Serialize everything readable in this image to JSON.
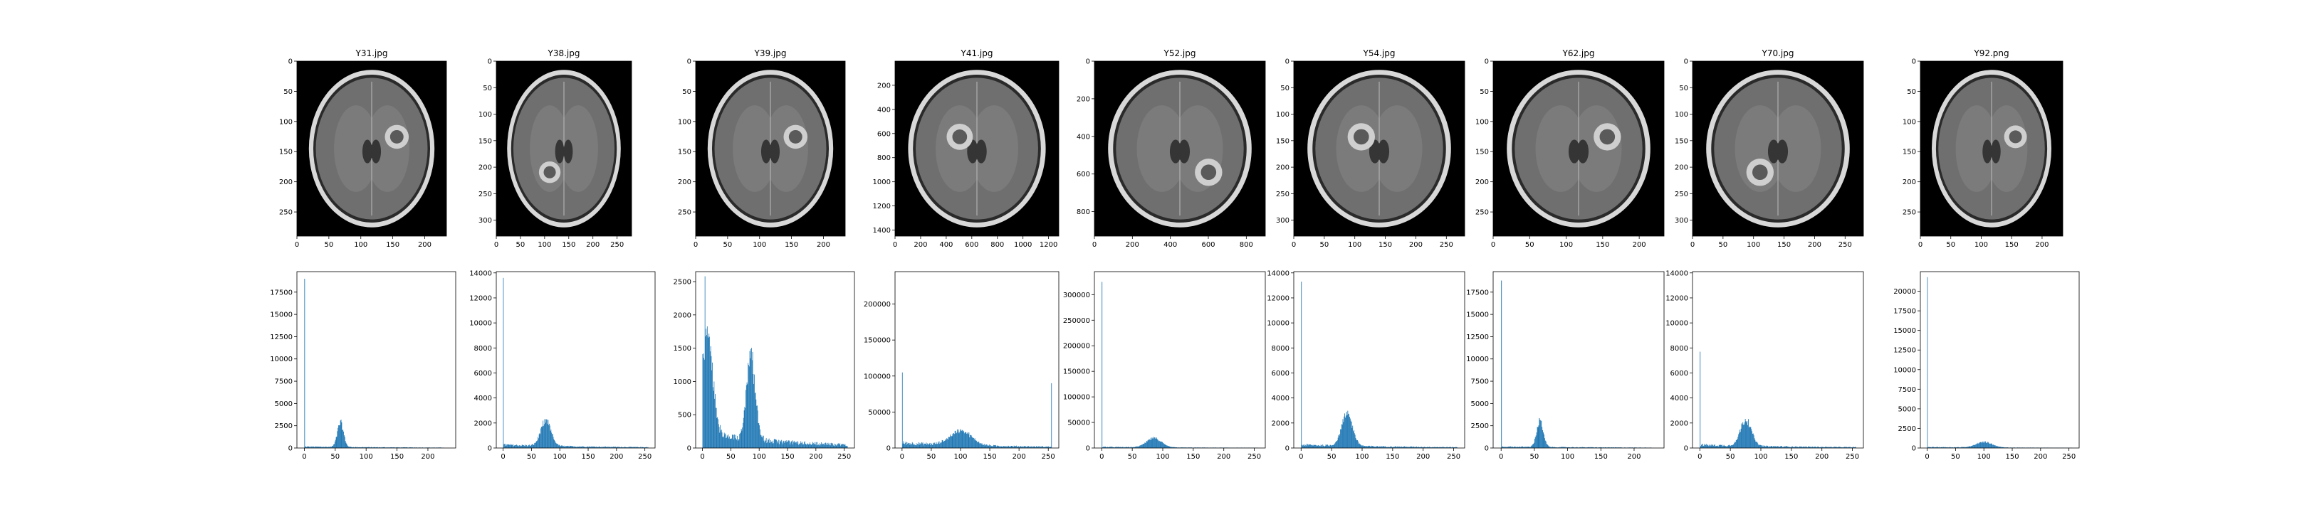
{
  "colors": {
    "bar": "#1f77b4",
    "axis": "#000000",
    "background": "#ffffff",
    "scan_background": "#000000"
  },
  "chart_data": [
    {
      "type": "image",
      "panel": 1,
      "title": "Y31.jpg",
      "content": "axial brain MRI scan (grayscale)",
      "x_ticks": [
        0,
        50,
        100,
        150,
        200
      ],
      "y_ticks": [
        0,
        50,
        100,
        150,
        200,
        250
      ],
      "xlim": [
        0,
        234
      ],
      "ylim": [
        0,
        290
      ]
    },
    {
      "type": "image",
      "panel": 2,
      "title": "Y38.jpg",
      "content": "axial brain MRI scan (grayscale)",
      "x_ticks": [
        0,
        50,
        100,
        150,
        200,
        250
      ],
      "y_ticks": [
        0,
        50,
        100,
        150,
        200,
        250,
        300
      ],
      "xlim": [
        0,
        280
      ],
      "ylim": [
        0,
        330
      ]
    },
    {
      "type": "image",
      "panel": 3,
      "title": "Y39.jpg",
      "content": "axial brain MRI scan (grayscale)",
      "x_ticks": [
        0,
        50,
        100,
        150,
        200
      ],
      "y_ticks": [
        0,
        50,
        100,
        150,
        200,
        250
      ],
      "xlim": [
        0,
        234
      ],
      "ylim": [
        0,
        290
      ]
    },
    {
      "type": "image",
      "panel": 4,
      "title": "Y41.jpg",
      "content": "axial brain MRI scan (grayscale)",
      "x_ticks": [
        0,
        200,
        400,
        600,
        800,
        1000,
        1200
      ],
      "y_ticks": [
        200,
        400,
        600,
        800,
        1000,
        1200,
        1400
      ],
      "xlim": [
        0,
        1280
      ],
      "ylim": [
        0,
        1450
      ]
    },
    {
      "type": "image",
      "panel": 5,
      "title": "Y52.jpg",
      "content": "axial brain MRI scan (grayscale)",
      "x_ticks": [
        0,
        200,
        400,
        600,
        800
      ],
      "y_ticks": [
        0,
        200,
        400,
        600,
        800
      ],
      "xlim": [
        0,
        900
      ],
      "ylim": [
        0,
        930
      ]
    },
    {
      "type": "image",
      "panel": 6,
      "title": "Y54.jpg",
      "content": "axial brain MRI scan (grayscale)",
      "x_ticks": [
        0,
        50,
        100,
        150,
        200,
        250
      ],
      "y_ticks": [
        0,
        50,
        100,
        150,
        200,
        250,
        300
      ],
      "xlim": [
        0,
        280
      ],
      "ylim": [
        0,
        330
      ]
    },
    {
      "type": "image",
      "panel": 7,
      "title": "Y62.jpg",
      "content": "axial brain MRI scan (grayscale)",
      "x_ticks": [
        0,
        50,
        100,
        150,
        200
      ],
      "y_ticks": [
        0,
        50,
        100,
        150,
        200,
        250
      ],
      "xlim": [
        0,
        234
      ],
      "ylim": [
        0,
        290
      ]
    },
    {
      "type": "image",
      "panel": 8,
      "title": "Y70.jpg",
      "content": "axial brain MRI scan (grayscale)",
      "x_ticks": [
        0,
        50,
        100,
        150,
        200,
        250
      ],
      "y_ticks": [
        0,
        50,
        100,
        150,
        200,
        250,
        300
      ],
      "xlim": [
        0,
        280
      ],
      "ylim": [
        0,
        330
      ]
    },
    {
      "type": "image",
      "panel": 9,
      "title": "Y92.png",
      "content": "axial brain MRI scan (grayscale)",
      "x_ticks": [
        0,
        50,
        100,
        150,
        200
      ],
      "y_ticks": [
        0,
        50,
        100,
        150,
        200,
        250
      ],
      "xlim": [
        0,
        234
      ],
      "ylim": [
        0,
        290
      ]
    },
    {
      "type": "bar",
      "panel": 10,
      "subtype": "histogram",
      "xlim": [
        -12,
        245
      ],
      "ylim": [
        0,
        19800
      ],
      "x_ticks": [
        0,
        50,
        100,
        150,
        200
      ],
      "y_ticks": [
        0,
        2500,
        5000,
        7500,
        10000,
        12500,
        15000,
        17500
      ],
      "spike": [
        0,
        19000
      ],
      "peaks": [
        [
          58,
          2700,
          5
        ]
      ],
      "baseline": 150
    },
    {
      "type": "bar",
      "panel": 11,
      "subtype": "histogram",
      "xlim": [
        -12,
        268
      ],
      "ylim": [
        0,
        14100
      ],
      "x_ticks": [
        0,
        50,
        100,
        150,
        200,
        250
      ],
      "y_ticks": [
        0,
        2000,
        4000,
        6000,
        8000,
        10000,
        12000,
        14000
      ],
      "spike": [
        0,
        13600
      ],
      "peaks": [
        [
          75,
          2000,
          9
        ]
      ],
      "baseline": 250
    },
    {
      "type": "bar",
      "panel": 12,
      "subtype": "histogram",
      "xlim": [
        -12,
        268
      ],
      "ylim": [
        0,
        2650
      ],
      "x_ticks": [
        0,
        50,
        100,
        150,
        200,
        250
      ],
      "y_ticks": [
        0,
        500,
        1000,
        1500,
        2000,
        2500
      ],
      "spike": [
        4,
        2580
      ],
      "peaks": [
        [
          8,
          1500,
          10
        ],
        [
          85,
          1250,
          8
        ]
      ],
      "baseline": 200
    },
    {
      "type": "bar",
      "panel": 13,
      "subtype": "histogram",
      "xlim": [
        -12,
        268
      ],
      "ylim": [
        0,
        245000
      ],
      "x_ticks": [
        0,
        50,
        100,
        150,
        200,
        250
      ],
      "y_ticks": [
        0,
        50000,
        100000,
        150000,
        200000
      ],
      "spike": [
        0,
        105000
      ],
      "peaks": [
        [
          100,
          20000,
          18
        ]
      ],
      "baseline": 7000,
      "end_spike": [
        255,
        90000
      ]
    },
    {
      "type": "bar",
      "panel": 14,
      "subtype": "histogram",
      "xlim": [
        -12,
        268
      ],
      "ylim": [
        0,
        345000
      ],
      "x_ticks": [
        0,
        50,
        100,
        150,
        200,
        250
      ],
      "y_ticks": [
        0,
        50000,
        100000,
        150000,
        200000,
        250000,
        300000
      ],
      "spike": [
        0,
        325000
      ],
      "peaks": [
        [
          85,
          18000,
          12
        ]
      ],
      "baseline": 2000
    },
    {
      "type": "bar",
      "panel": 15,
      "subtype": "histogram",
      "xlim": [
        -12,
        268
      ],
      "ylim": [
        0,
        14100
      ],
      "x_ticks": [
        0,
        50,
        100,
        150,
        200,
        250
      ],
      "y_ticks": [
        0,
        2000,
        4000,
        6000,
        8000,
        10000,
        12000,
        14000
      ],
      "spike": [
        0,
        13300
      ],
      "peaks": [
        [
          75,
          2500,
          9
        ]
      ],
      "baseline": 250
    },
    {
      "type": "bar",
      "panel": 16,
      "subtype": "histogram",
      "xlim": [
        -12,
        245
      ],
      "ylim": [
        0,
        19800
      ],
      "x_ticks": [
        0,
        50,
        100,
        150,
        200
      ],
      "y_ticks": [
        0,
        2500,
        5000,
        7500,
        10000,
        12500,
        15000,
        17500
      ],
      "spike": [
        0,
        18800
      ],
      "peaks": [
        [
          58,
          2900,
          5
        ]
      ],
      "baseline": 150
    },
    {
      "type": "bar",
      "panel": 17,
      "subtype": "histogram",
      "xlim": [
        -12,
        268
      ],
      "ylim": [
        0,
        14100
      ],
      "x_ticks": [
        0,
        50,
        100,
        150,
        200,
        250
      ],
      "y_ticks": [
        0,
        2000,
        4000,
        6000,
        8000,
        10000,
        12000,
        14000
      ],
      "spike": [
        0,
        7700
      ],
      "peaks": [
        [
          75,
          2100,
          9
        ]
      ],
      "baseline": 250
    },
    {
      "type": "bar",
      "panel": 18,
      "subtype": "histogram",
      "xlim": [
        -12,
        268
      ],
      "ylim": [
        0,
        22500
      ],
      "x_ticks": [
        0,
        50,
        100,
        150,
        200,
        250
      ],
      "y_ticks": [
        0,
        2500,
        5000,
        7500,
        10000,
        12500,
        15000,
        17500,
        20000
      ],
      "spike": [
        0,
        21800
      ],
      "peaks": [
        [
          100,
          700,
          14
        ]
      ],
      "baseline": 120
    }
  ]
}
